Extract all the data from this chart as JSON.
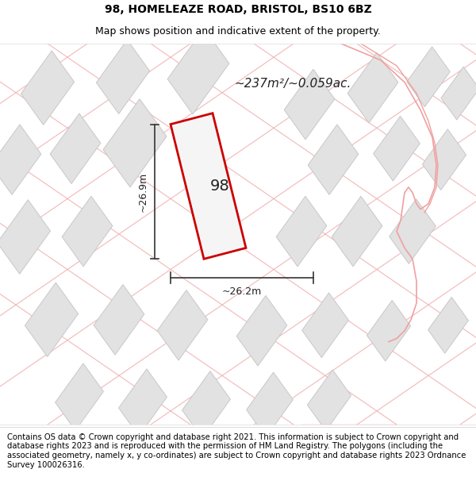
{
  "title_line1": "98, HOMELEAZE ROAD, BRISTOL, BS10 6BZ",
  "title_line2": "Map shows position and indicative extent of the property.",
  "footer_text": "Contains OS data © Crown copyright and database right 2021. This information is subject to Crown copyright and database rights 2023 and is reproduced with the permission of HM Land Registry. The polygons (including the associated geometry, namely x, y co-ordinates) are subject to Crown copyright and database rights 2023 Ordnance Survey 100026316.",
  "area_label": "~237m²/~0.059ac.",
  "property_number": "98",
  "dim_width": "~26.2m",
  "dim_height": "~26.9m",
  "map_bg_color": "#f7f7f7",
  "property_edge": "#cc0000",
  "building_color": "#e2e2e2",
  "building_edge": "#c8c8c8",
  "road_line_color": "#f0b0b0",
  "title_fontsize": 10,
  "subtitle_fontsize": 9,
  "footer_fontsize": 7.2
}
